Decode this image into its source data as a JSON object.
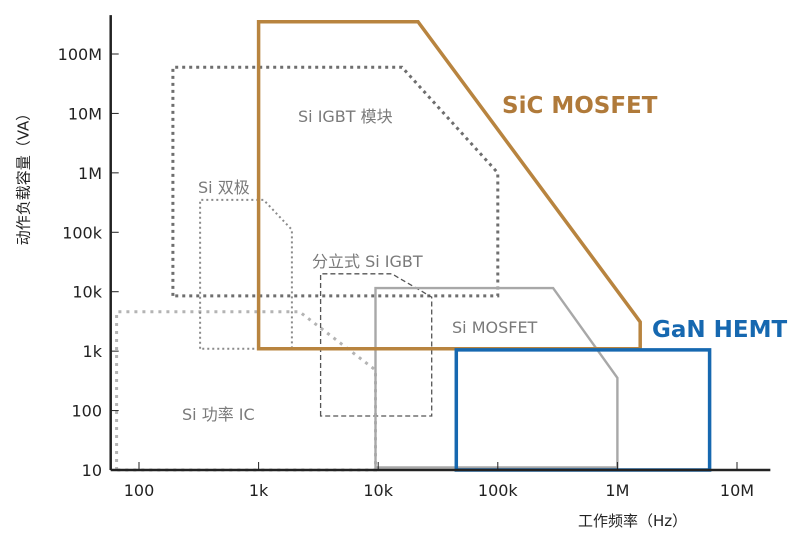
{
  "chart_data": {
    "type": "area",
    "xlabel": "工作频率（Hz）",
    "ylabel": "动作负载容量（VA）",
    "x_scale": "log",
    "y_scale": "log",
    "xlim": [
      58,
      19000000
    ],
    "ylim": [
      10,
      450000000
    ],
    "x_ticks": [
      {
        "v": 100,
        "label": "100"
      },
      {
        "v": 1000,
        "label": "1k"
      },
      {
        "v": 10000,
        "label": "10k"
      },
      {
        "v": 100000,
        "label": "100k"
      },
      {
        "v": 1000000,
        "label": "1M"
      },
      {
        "v": 10000000,
        "label": "10M"
      }
    ],
    "y_ticks": [
      {
        "v": 10,
        "label": "10"
      },
      {
        "v": 100,
        "label": "100"
      },
      {
        "v": 1000,
        "label": "1k"
      },
      {
        "v": 10000,
        "label": "10k"
      },
      {
        "v": 100000,
        "label": "100k"
      },
      {
        "v": 1000000,
        "label": "1M"
      },
      {
        "v": 10000000,
        "label": "10M"
      },
      {
        "v": 100000000,
        "label": "100M"
      }
    ],
    "grid": false,
    "regions": [
      {
        "name": "Si 功率 IC",
        "style": "dotted-thick",
        "color": "#b4b4b4",
        "points": [
          [
            65,
            10
          ],
          [
            65,
            4600
          ],
          [
            2200,
            4600
          ],
          [
            9500,
            480
          ],
          [
            9500,
            10
          ]
        ]
      },
      {
        "name": "Si IGBT 模块",
        "style": "dotted",
        "color": "#6e6e6e",
        "points": [
          [
            192,
            8500
          ],
          [
            192,
            60000000
          ],
          [
            15800,
            60000000
          ],
          [
            100000,
            1000000
          ],
          [
            100000,
            8500
          ]
        ]
      },
      {
        "name": "Si 双极",
        "style": "dotted-fine",
        "color": "#8a8a8a",
        "points": [
          [
            324,
            1100
          ],
          [
            324,
            350000
          ],
          [
            1100,
            350000
          ],
          [
            1900,
            110000
          ],
          [
            1900,
            1100
          ]
        ]
      },
      {
        "name": "分立式 Si IGBT",
        "style": "dashed",
        "color": "#555555",
        "points": [
          [
            3300,
            81
          ],
          [
            3300,
            20000
          ],
          [
            13000,
            20000
          ],
          [
            28000,
            8100
          ],
          [
            28000,
            81
          ]
        ]
      },
      {
        "name": "Si MOSFET",
        "style": "solid",
        "color": "#a8a8a8",
        "points": [
          [
            9500,
            11
          ],
          [
            9500,
            11500
          ],
          [
            290000,
            11500
          ],
          [
            1000000,
            355
          ],
          [
            1000000,
            11
          ]
        ]
      },
      {
        "name": "SiC MOSFET",
        "style": "solid-bold",
        "color": "#b8843f",
        "points": [
          [
            1000,
            1100
          ],
          [
            1000,
            350000000
          ],
          [
            21500,
            350000000
          ],
          [
            1550000,
            3100
          ],
          [
            1550000,
            1100
          ]
        ]
      },
      {
        "name": "GaN HEMT",
        "style": "solid-bold",
        "color": "#1668b0",
        "points": [
          [
            45000,
            10
          ],
          [
            45000,
            1050
          ],
          [
            5900000,
            1050
          ],
          [
            5900000,
            10
          ]
        ]
      }
    ]
  }
}
